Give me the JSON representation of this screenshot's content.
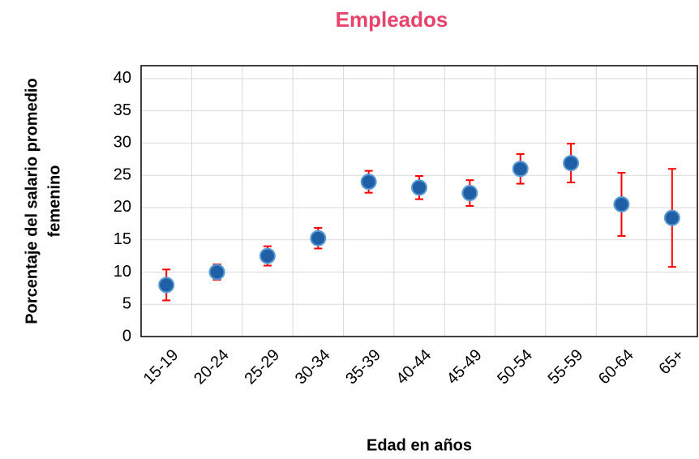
{
  "chart_data": {
    "type": "scatter",
    "title": "Empleados",
    "x_label": "Edad en años",
    "y_label": [
      "Porcentaje del salario promedio",
      "femenino"
    ],
    "categories": [
      "15-19",
      "20-24",
      "25-29",
      "30-34",
      "35-39",
      "40-44",
      "45-49",
      "50-54",
      "55-59",
      "60-64",
      "65+"
    ],
    "values": [
      8.0,
      10.0,
      12.5,
      15.25,
      24.0,
      23.1,
      22.25,
      26.0,
      26.9,
      20.5,
      18.4
    ],
    "errors": [
      2.4,
      1.2,
      1.5,
      1.6,
      1.7,
      1.8,
      2.0,
      2.3,
      3.0,
      4.9,
      7.6
    ],
    "color": "#1f5fa6",
    "error_color": "#ff0000",
    "ylim": [
      0,
      42
    ],
    "yticks": [
      0,
      5,
      10,
      15,
      20,
      25,
      30,
      35,
      40
    ],
    "grid": true
  }
}
